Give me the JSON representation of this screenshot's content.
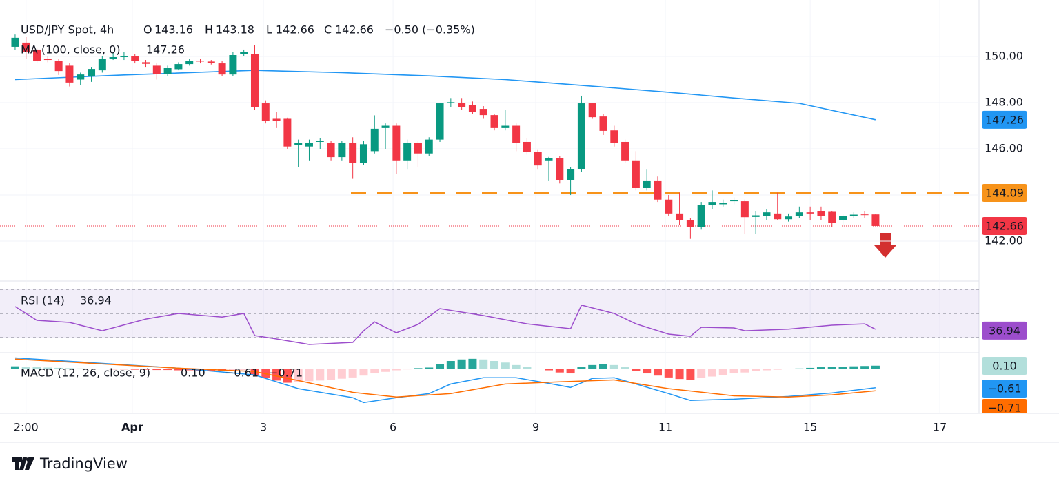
{
  "chart_data": [
    {
      "type": "candlestick",
      "title": "USD/JPY Spot, 4h",
      "ohlc_letters": [
        "O",
        "H",
        "L",
        "C"
      ],
      "change": "−0.50 (−0.35%)",
      "up_color": "#089981",
      "down_color": "#f23645",
      "open": [
        150.42,
        150.6,
        150.3,
        149.9,
        149.8,
        149.6,
        149.0,
        149.16,
        149.4,
        149.9,
        149.97,
        150.0,
        149.75,
        149.6,
        149.25,
        149.45,
        149.67,
        149.82,
        149.78,
        149.7,
        149.22,
        150.1,
        150.1,
        147.97,
        147.3,
        147.3,
        146.15,
        146.1,
        146.3,
        146.27,
        145.64,
        146.27,
        145.4,
        145.9,
        146.9,
        147.0,
        145.5,
        146.27,
        145.8,
        146.4,
        148.0,
        148.0,
        147.9,
        147.73,
        147.46,
        146.9,
        147.0,
        146.3,
        145.88,
        145.5,
        145.6,
        144.63,
        145.13,
        147.97,
        147.4,
        146.8,
        146.3,
        145.5,
        144.3,
        144.6,
        143.8,
        143.2,
        142.9,
        142.6,
        143.58,
        143.6,
        143.73,
        143.73,
        143.05,
        143.1,
        143.2,
        142.95,
        143.1,
        143.25,
        143.3,
        143.27,
        142.9,
        143.1,
        143.16,
        143.16
      ],
      "high": [
        150.95,
        150.85,
        150.4,
        150.0,
        149.9,
        149.7,
        149.3,
        149.55,
        150.0,
        150.2,
        150.2,
        150.1,
        149.85,
        149.7,
        149.6,
        149.75,
        149.9,
        149.9,
        149.85,
        149.8,
        150.2,
        150.3,
        150.5,
        148.1,
        147.6,
        147.35,
        146.4,
        146.4,
        146.45,
        146.35,
        146.35,
        146.5,
        146.35,
        147.45,
        147.1,
        147.1,
        146.4,
        146.35,
        146.5,
        148.0,
        148.2,
        148.2,
        148.05,
        147.85,
        147.5,
        147.7,
        147.1,
        146.45,
        145.95,
        145.65,
        145.7,
        145.2,
        148.3,
        148.0,
        147.5,
        147.0,
        146.4,
        145.9,
        145.1,
        144.8,
        144.0,
        144.1,
        143.0,
        143.7,
        144.2,
        143.8,
        143.9,
        143.8,
        143.3,
        143.4,
        144.1,
        143.2,
        143.5,
        143.5,
        143.5,
        143.3,
        143.2,
        143.25,
        143.3,
        143.18
      ],
      "low": [
        150.3,
        149.9,
        149.7,
        149.75,
        149.2,
        148.7,
        148.75,
        148.9,
        149.3,
        149.85,
        149.85,
        149.7,
        149.55,
        149.0,
        149.15,
        149.4,
        149.6,
        149.7,
        149.65,
        149.15,
        149.15,
        150.0,
        147.7,
        147.1,
        146.9,
        146.0,
        145.2,
        145.5,
        146.0,
        145.5,
        145.5,
        144.7,
        145.3,
        145.8,
        146.0,
        144.9,
        145.1,
        145.2,
        145.7,
        146.3,
        147.8,
        147.7,
        147.5,
        147.3,
        146.8,
        146.8,
        145.9,
        145.75,
        145.1,
        144.6,
        144.5,
        144.0,
        145.0,
        147.3,
        146.6,
        146.1,
        145.4,
        144.2,
        144.2,
        143.7,
        143.1,
        142.7,
        142.1,
        142.5,
        143.4,
        143.5,
        143.6,
        142.3,
        142.3,
        142.9,
        142.9,
        142.85,
        143.0,
        142.9,
        142.9,
        142.6,
        142.6,
        143.0,
        143.0,
        142.66
      ],
      "close": [
        150.81,
        150.2,
        149.8,
        149.85,
        149.37,
        148.87,
        149.22,
        149.46,
        149.9,
        149.97,
        150.0,
        149.8,
        149.68,
        149.25,
        149.5,
        149.67,
        149.8,
        149.78,
        149.72,
        149.22,
        150.06,
        150.2,
        147.8,
        147.22,
        147.2,
        146.1,
        146.25,
        146.27,
        146.33,
        145.64,
        146.27,
        145.4,
        146.2,
        146.87,
        147.0,
        145.5,
        146.27,
        145.8,
        146.4,
        147.97,
        148.02,
        147.82,
        147.6,
        147.46,
        146.9,
        147.0,
        146.27,
        145.88,
        145.28,
        145.6,
        144.63,
        145.13,
        147.97,
        147.37,
        146.78,
        146.27,
        145.5,
        144.3,
        144.6,
        143.8,
        143.2,
        142.9,
        142.6,
        143.58,
        143.7,
        143.65,
        143.78,
        143.04,
        143.12,
        143.25,
        142.95,
        143.07,
        143.25,
        143.2,
        143.1,
        142.8,
        143.1,
        143.15,
        143.14,
        142.66
      ],
      "ma": {
        "name": "MA (100, close, 0)",
        "color": "#2196f3",
        "x": [
          0,
          10,
          22,
          30,
          38,
          45,
          52,
          60,
          66,
          72,
          79
        ],
        "values": [
          149.0,
          149.2,
          149.4,
          149.3,
          149.16,
          149.0,
          148.75,
          148.45,
          148.2,
          147.97,
          147.26
        ]
      },
      "level": {
        "value": 144.09,
        "color": "#f7931a"
      },
      "ylim": [
        140.36,
        152.0
      ],
      "yticks": [
        {
          "value": 142,
          "label": "142.00"
        },
        {
          "value": 144,
          "label": "144.00"
        },
        {
          "value": 146,
          "label": "146.00"
        },
        {
          "value": 148,
          "label": "148.00"
        },
        {
          "value": 150,
          "label": "150.00"
        }
      ],
      "xlim": [
        -0.44,
        88.5
      ],
      "xticks": [
        {
          "value": 1,
          "label": "2:00"
        },
        {
          "value": 10.76,
          "label": "Apr"
        },
        {
          "value": 22.8,
          "label": "3"
        },
        {
          "value": 34.7,
          "label": "6"
        },
        {
          "value": 47.8,
          "label": "9"
        },
        {
          "value": 59.7,
          "label": "11"
        },
        {
          "value": 73,
          "label": "15"
        },
        {
          "value": 84.9,
          "label": "17"
        }
      ]
    },
    {
      "type": "line",
      "title": "RSI (14)",
      "color": "#9c4dcc",
      "bands": [
        30,
        50,
        70
      ],
      "ylim": [
        18.6,
        75.7
      ],
      "x": [
        0,
        2,
        5,
        8,
        12,
        15,
        19,
        21,
        22,
        24,
        27,
        31,
        32,
        33,
        35,
        37,
        39,
        43,
        47,
        51,
        52,
        55,
        57,
        60,
        62,
        63,
        66,
        67,
        71,
        75,
        78,
        79
      ],
      "values": [
        55.7,
        44.3,
        42.6,
        35.7,
        45.4,
        50,
        47,
        50,
        31.7,
        28.9,
        24.3,
        26,
        35.7,
        43,
        34,
        41,
        54,
        48.3,
        41.4,
        37.4,
        56.9,
        50,
        41.4,
        32.9,
        31.1,
        38.6,
        38,
        35.7,
        37,
        40.3,
        41.4,
        36.94
      ]
    },
    {
      "type": "macd",
      "title": "MACD (12, 26, close, 9)",
      "ylim": [
        -1.37,
        0.45
      ],
      "histogram": {
        "last_label": "0.10",
        "values": [
          0.08,
          0.07,
          0.05,
          0.04,
          0.03,
          0.02,
          0.01,
          0,
          -0.01,
          -0.02,
          -0.02,
          -0.03,
          -0.03,
          -0.04,
          -0.04,
          -0.05,
          -0.05,
          -0.06,
          -0.07,
          -0.08,
          -0.05,
          -0.04,
          -0.2,
          -0.3,
          -0.38,
          -0.45,
          -0.42,
          -0.4,
          -0.38,
          -0.36,
          -0.32,
          -0.28,
          -0.22,
          -0.15,
          -0.1,
          -0.05,
          -0.02,
          0.02,
          0.04,
          0.15,
          0.25,
          0.3,
          0.32,
          0.3,
          0.25,
          0.2,
          0.12,
          0.06,
          0.0,
          -0.05,
          -0.12,
          -0.15,
          0.05,
          0.12,
          0.15,
          0.12,
          0.05,
          -0.08,
          -0.15,
          -0.22,
          -0.28,
          -0.33,
          -0.35,
          -0.3,
          -0.25,
          -0.2,
          -0.15,
          -0.12,
          -0.08,
          -0.05,
          -0.03,
          -0.01,
          0.01,
          0.03,
          0.05,
          0.06,
          0.07,
          0.08,
          0.09,
          0.1
        ]
      },
      "macd": {
        "color": "#2196f3",
        "last_label": "−0.61",
        "x": [
          0,
          15,
          22,
          26,
          31,
          32,
          35,
          38,
          40,
          43,
          46,
          49,
          51,
          53,
          55,
          57,
          60,
          62,
          66,
          71,
          75,
          79
        ],
        "values": [
          0.35,
          0.02,
          -0.2,
          -0.64,
          -0.93,
          -1.09,
          -0.93,
          -0.8,
          -0.49,
          -0.29,
          -0.29,
          -0.47,
          -0.6,
          -0.31,
          -0.29,
          -0.49,
          -0.8,
          -1.02,
          -0.98,
          -0.89,
          -0.78,
          -0.61
        ]
      },
      "signal": {
        "color": "#ff6d00",
        "last_label": "−0.71",
        "x": [
          0,
          15,
          22,
          26,
          31,
          35,
          40,
          45,
          50,
          55,
          60,
          66,
          71,
          75,
          79
        ],
        "values": [
          0.31,
          0.02,
          -0.09,
          -0.38,
          -0.76,
          -0.91,
          -0.8,
          -0.49,
          -0.42,
          -0.36,
          -0.64,
          -0.87,
          -0.91,
          -0.84,
          -0.71
        ]
      }
    }
  ],
  "brand": "TradingView"
}
